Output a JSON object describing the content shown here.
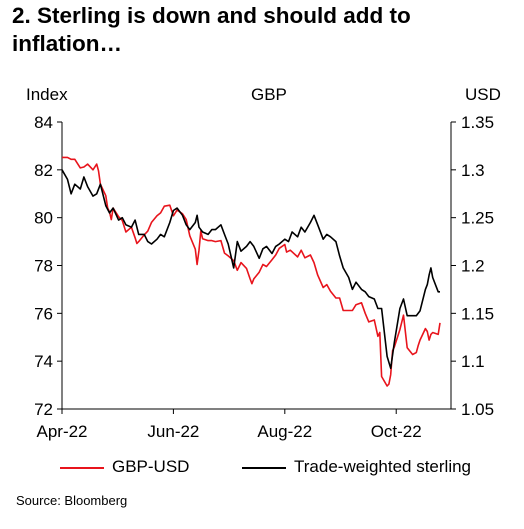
{
  "title": "2. Sterling is down and should add to inflation…",
  "header": {
    "left": "Index",
    "center": "GBP",
    "right": "USD"
  },
  "source": "Source: Bloomberg",
  "chart_data": {
    "type": "line",
    "title": "2. Sterling is down and should add to inflation…",
    "x_ticks": [
      "Apr-22",
      "Jun-22",
      "Aug-22",
      "Oct-22"
    ],
    "x_range": [
      "2022-04-01",
      "2022-10-31"
    ],
    "y_left": {
      "label": "Index",
      "min": 72,
      "max": 84,
      "ticks": [
        72,
        74,
        76,
        78,
        80,
        82,
        84
      ]
    },
    "y_right": {
      "label": "USD",
      "min": 1.05,
      "max": 1.35,
      "ticks": [
        "1.05",
        "1.1",
        "1.15",
        "1.2",
        "1.25",
        "1.3",
        "1.35"
      ]
    },
    "grid": false,
    "legend": "bottom",
    "series": [
      {
        "name": "GBP-USD",
        "axis": "right",
        "color": "#e8141c",
        "x": [
          "2022-04-01",
          "2022-04-04",
          "2022-04-06",
          "2022-04-08",
          "2022-04-11",
          "2022-04-13",
          "2022-04-15",
          "2022-04-18",
          "2022-04-20",
          "2022-04-21",
          "2022-04-22",
          "2022-04-25",
          "2022-04-26",
          "2022-04-27",
          "2022-04-28",
          "2022-04-29",
          "2022-05-02",
          "2022-05-04",
          "2022-05-05",
          "2022-05-06",
          "2022-05-09",
          "2022-05-11",
          "2022-05-12",
          "2022-05-13",
          "2022-05-16",
          "2022-05-18",
          "2022-05-20",
          "2022-05-23",
          "2022-05-25",
          "2022-05-27",
          "2022-05-30",
          "2022-06-01",
          "2022-06-03",
          "2022-06-06",
          "2022-06-08",
          "2022-06-10",
          "2022-06-13",
          "2022-06-14",
          "2022-06-15",
          "2022-06-16",
          "2022-06-17",
          "2022-06-20",
          "2022-06-22",
          "2022-06-24",
          "2022-06-27",
          "2022-06-29",
          "2022-07-01",
          "2022-07-04",
          "2022-07-06",
          "2022-07-08",
          "2022-07-11",
          "2022-07-13",
          "2022-07-14",
          "2022-07-15",
          "2022-07-18",
          "2022-07-20",
          "2022-07-22",
          "2022-07-25",
          "2022-07-27",
          "2022-07-29",
          "2022-08-01",
          "2022-08-02",
          "2022-08-04",
          "2022-08-08",
          "2022-08-10",
          "2022-08-12",
          "2022-08-15",
          "2022-08-17",
          "2022-08-19",
          "2022-08-22",
          "2022-08-24",
          "2022-08-26",
          "2022-08-29",
          "2022-08-31",
          "2022-09-02",
          "2022-09-05",
          "2022-09-07",
          "2022-09-09",
          "2022-09-12",
          "2022-09-14",
          "2022-09-16",
          "2022-09-19",
          "2022-09-21",
          "2022-09-22",
          "2022-09-23",
          "2022-09-26",
          "2022-09-27",
          "2022-09-28",
          "2022-09-29",
          "2022-09-30",
          "2022-10-03",
          "2022-10-05",
          "2022-10-07",
          "2022-10-10",
          "2022-10-12",
          "2022-10-13",
          "2022-10-14",
          "2022-10-17",
          "2022-10-18",
          "2022-10-19",
          "2022-10-20",
          "2022-10-21",
          "2022-10-24",
          "2022-10-25"
        ],
        "values": [
          1.313,
          1.313,
          1.311,
          1.311,
          1.302,
          1.303,
          1.306,
          1.3,
          1.306,
          1.299,
          1.285,
          1.273,
          1.26,
          1.256,
          1.248,
          1.26,
          1.251,
          1.247,
          1.241,
          1.235,
          1.24,
          1.229,
          1.223,
          1.225,
          1.232,
          1.236,
          1.245,
          1.252,
          1.255,
          1.262,
          1.263,
          1.252,
          1.258,
          1.254,
          1.248,
          1.231,
          1.217,
          1.201,
          1.216,
          1.236,
          1.228,
          1.226,
          1.226,
          1.225,
          1.226,
          1.213,
          1.21,
          1.205,
          1.195,
          1.203,
          1.197,
          1.186,
          1.181,
          1.186,
          1.193,
          1.201,
          1.199,
          1.206,
          1.211,
          1.218,
          1.222,
          1.214,
          1.216,
          1.209,
          1.216,
          1.208,
          1.211,
          1.203,
          1.19,
          1.177,
          1.18,
          1.173,
          1.166,
          1.166,
          1.153,
          1.153,
          1.153,
          1.159,
          1.161,
          1.15,
          1.141,
          1.143,
          1.126,
          1.13,
          1.084,
          1.074,
          1.076,
          1.086,
          1.111,
          1.115,
          1.133,
          1.148,
          1.114,
          1.107,
          1.109,
          1.116,
          1.122,
          1.134,
          1.131,
          1.122,
          1.128,
          1.13,
          1.128,
          1.14
        ]
      },
      {
        "name": "Trade-weighted sterling",
        "axis": "left",
        "color": "#000000",
        "x": [
          "2022-04-01",
          "2022-04-04",
          "2022-04-06",
          "2022-04-08",
          "2022-04-11",
          "2022-04-13",
          "2022-04-15",
          "2022-04-18",
          "2022-04-20",
          "2022-04-22",
          "2022-04-25",
          "2022-04-27",
          "2022-04-29",
          "2022-05-02",
          "2022-05-04",
          "2022-05-06",
          "2022-05-09",
          "2022-05-11",
          "2022-05-13",
          "2022-05-16",
          "2022-05-18",
          "2022-05-20",
          "2022-05-23",
          "2022-05-25",
          "2022-05-27",
          "2022-05-30",
          "2022-06-01",
          "2022-06-03",
          "2022-06-06",
          "2022-06-08",
          "2022-06-10",
          "2022-06-13",
          "2022-06-14",
          "2022-06-15",
          "2022-06-17",
          "2022-06-20",
          "2022-06-22",
          "2022-06-24",
          "2022-06-27",
          "2022-06-29",
          "2022-07-01",
          "2022-07-04",
          "2022-07-06",
          "2022-07-08",
          "2022-07-11",
          "2022-07-13",
          "2022-07-15",
          "2022-07-18",
          "2022-07-20",
          "2022-07-22",
          "2022-07-25",
          "2022-07-27",
          "2022-07-29",
          "2022-08-01",
          "2022-08-03",
          "2022-08-05",
          "2022-08-08",
          "2022-08-10",
          "2022-08-12",
          "2022-08-15",
          "2022-08-17",
          "2022-08-19",
          "2022-08-22",
          "2022-08-24",
          "2022-08-26",
          "2022-08-29",
          "2022-08-31",
          "2022-09-02",
          "2022-09-05",
          "2022-09-07",
          "2022-09-09",
          "2022-09-12",
          "2022-09-14",
          "2022-09-16",
          "2022-09-19",
          "2022-09-21",
          "2022-09-23",
          "2022-09-26",
          "2022-09-28",
          "2022-09-30",
          "2022-10-03",
          "2022-10-05",
          "2022-10-07",
          "2022-10-10",
          "2022-10-12",
          "2022-10-14",
          "2022-10-17",
          "2022-10-18",
          "2022-10-19",
          "2022-10-20",
          "2022-10-21",
          "2022-10-24",
          "2022-10-25"
        ],
        "values": [
          82.0,
          81.6,
          81.0,
          81.4,
          81.2,
          81.7,
          81.3,
          80.9,
          81.0,
          81.4,
          80.5,
          80.2,
          80.4,
          79.9,
          80.0,
          79.7,
          79.6,
          79.9,
          79.3,
          79.3,
          79.0,
          78.9,
          79.1,
          79.3,
          79.2,
          79.8,
          80.3,
          80.4,
          80.1,
          79.7,
          79.5,
          79.8,
          80.1,
          79.6,
          79.4,
          79.3,
          79.5,
          79.5,
          79.7,
          79.3,
          78.9,
          77.9,
          79.0,
          78.6,
          78.8,
          79.0,
          78.8,
          78.3,
          78.7,
          78.8,
          78.5,
          78.8,
          78.9,
          79.1,
          79.0,
          79.4,
          79.2,
          79.6,
          79.4,
          79.8,
          80.1,
          79.7,
          79.1,
          79.3,
          79.2,
          79.0,
          78.4,
          77.9,
          77.5,
          77.0,
          77.3,
          77.0,
          76.9,
          76.7,
          76.6,
          76.2,
          76.2,
          74.2,
          73.7,
          74.8,
          76.2,
          76.6,
          75.9,
          75.9,
          75.9,
          76.1,
          77.0,
          77.2,
          77.6,
          77.9,
          77.5,
          76.9,
          76.9
        ]
      }
    ]
  }
}
